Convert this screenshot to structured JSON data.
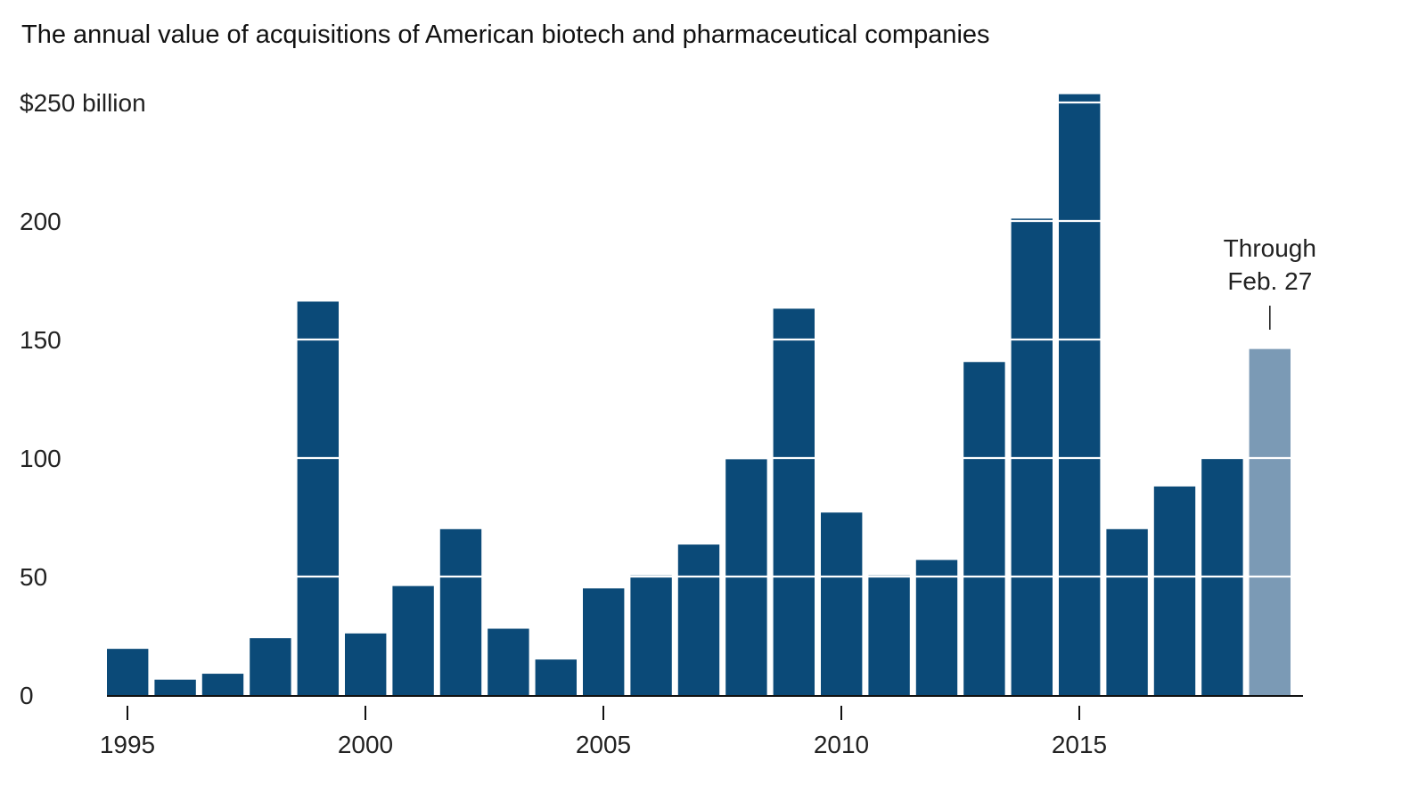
{
  "chart_data": {
    "type": "bar",
    "title": "The annual value of acquisitions of American biotech and pharmaceutical companies",
    "ylabel_unit": "$250 billion",
    "xlabel": "",
    "ylabel": "",
    "ylim": [
      0,
      250
    ],
    "yticks": [
      0,
      50,
      100,
      150,
      200,
      250
    ],
    "ytick_labels": [
      "0",
      "50",
      "100",
      "150",
      "200",
      "$250 billion"
    ],
    "xticks": [
      1995,
      2000,
      2005,
      2010,
      2015
    ],
    "xtick_labels": [
      "1995",
      "2000",
      "2005",
      "2010",
      "2015"
    ],
    "grid": "white gridlines drawn over bars",
    "categories": [
      1995,
      1996,
      1997,
      1998,
      1999,
      2000,
      2001,
      2002,
      2003,
      2004,
      2005,
      2006,
      2007,
      2008,
      2009,
      2010,
      2011,
      2012,
      2013,
      2014,
      2015,
      2016,
      2017,
      2018,
      2019
    ],
    "values": [
      19.5,
      6.5,
      9,
      24,
      166,
      26,
      46,
      70,
      28,
      15,
      45,
      50.5,
      63.5,
      99.5,
      163,
      77,
      50.5,
      57,
      140.5,
      201,
      253.5,
      70,
      88,
      100,
      146
    ],
    "colors": {
      "bar": "#0b4a78",
      "partial_bar": "#7b9ab5",
      "axis": "#111111",
      "grid": "#ffffff"
    },
    "partial_index": 24,
    "annotation": {
      "lines": [
        "Through",
        "Feb. 27"
      ],
      "category": 2019
    }
  }
}
